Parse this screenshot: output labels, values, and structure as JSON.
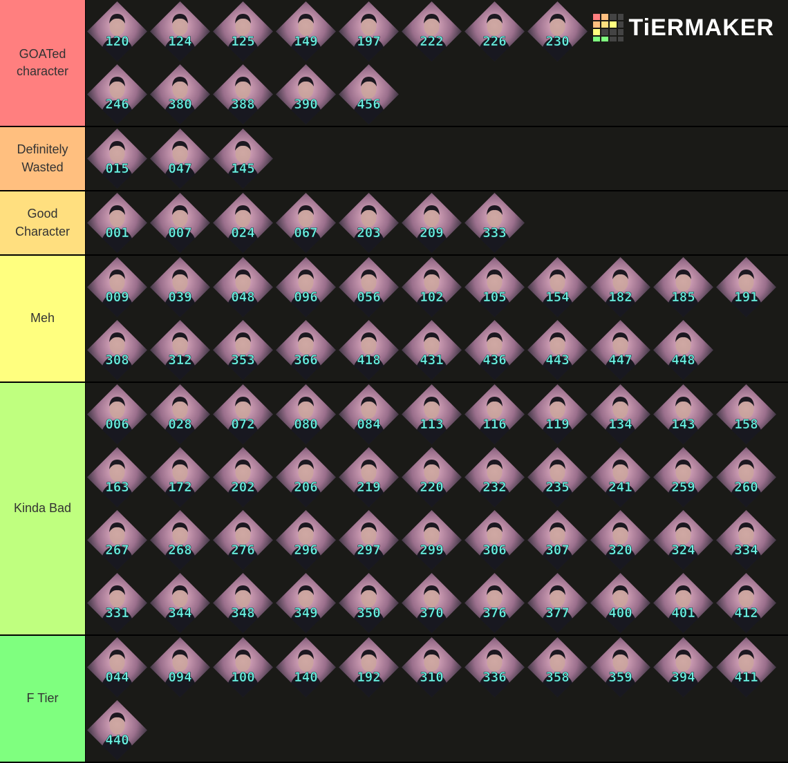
{
  "watermark": "TiERMAKER",
  "tiers": [
    {
      "label": "GOATed character",
      "color": "#ff7f7f",
      "items": [
        "120",
        "124",
        "125",
        "149",
        "197",
        "222",
        "226",
        "230",
        "246",
        "380",
        "388",
        "390",
        "456"
      ]
    },
    {
      "label": "Definitely Wasted",
      "color": "#ffbf7f",
      "items": [
        "015",
        "047",
        "145"
      ]
    },
    {
      "label": "Good Character",
      "color": "#ffdf7f",
      "items": [
        "001",
        "007",
        "024",
        "067",
        "203",
        "209",
        "333"
      ]
    },
    {
      "label": "Meh",
      "color": "#ffff7f",
      "items": [
        "009",
        "039",
        "048",
        "096",
        "056",
        "102",
        "105",
        "154",
        "182",
        "185",
        "191",
        "308",
        "312",
        "353",
        "366",
        "418",
        "431",
        "436",
        "443",
        "447",
        "448"
      ]
    },
    {
      "label": "Kinda Bad",
      "color": "#bfff7f",
      "items": [
        "006",
        "028",
        "072",
        "080",
        "084",
        "113",
        "116",
        "119",
        "134",
        "143",
        "158",
        "163",
        "172",
        "202",
        "206",
        "219",
        "220",
        "232",
        "235",
        "241",
        "259",
        "260",
        "267",
        "268",
        "276",
        "296",
        "297",
        "299",
        "306",
        "307",
        "320",
        "324",
        "334",
        "331",
        "344",
        "348",
        "349",
        "350",
        "370",
        "376",
        "377",
        "400",
        "401",
        "412"
      ]
    },
    {
      "label": "F Tier",
      "color": "#7fff7f",
      "items": [
        "044",
        "094",
        "100",
        "140",
        "192",
        "310",
        "336",
        "358",
        "359",
        "394",
        "411",
        "440"
      ]
    }
  ]
}
